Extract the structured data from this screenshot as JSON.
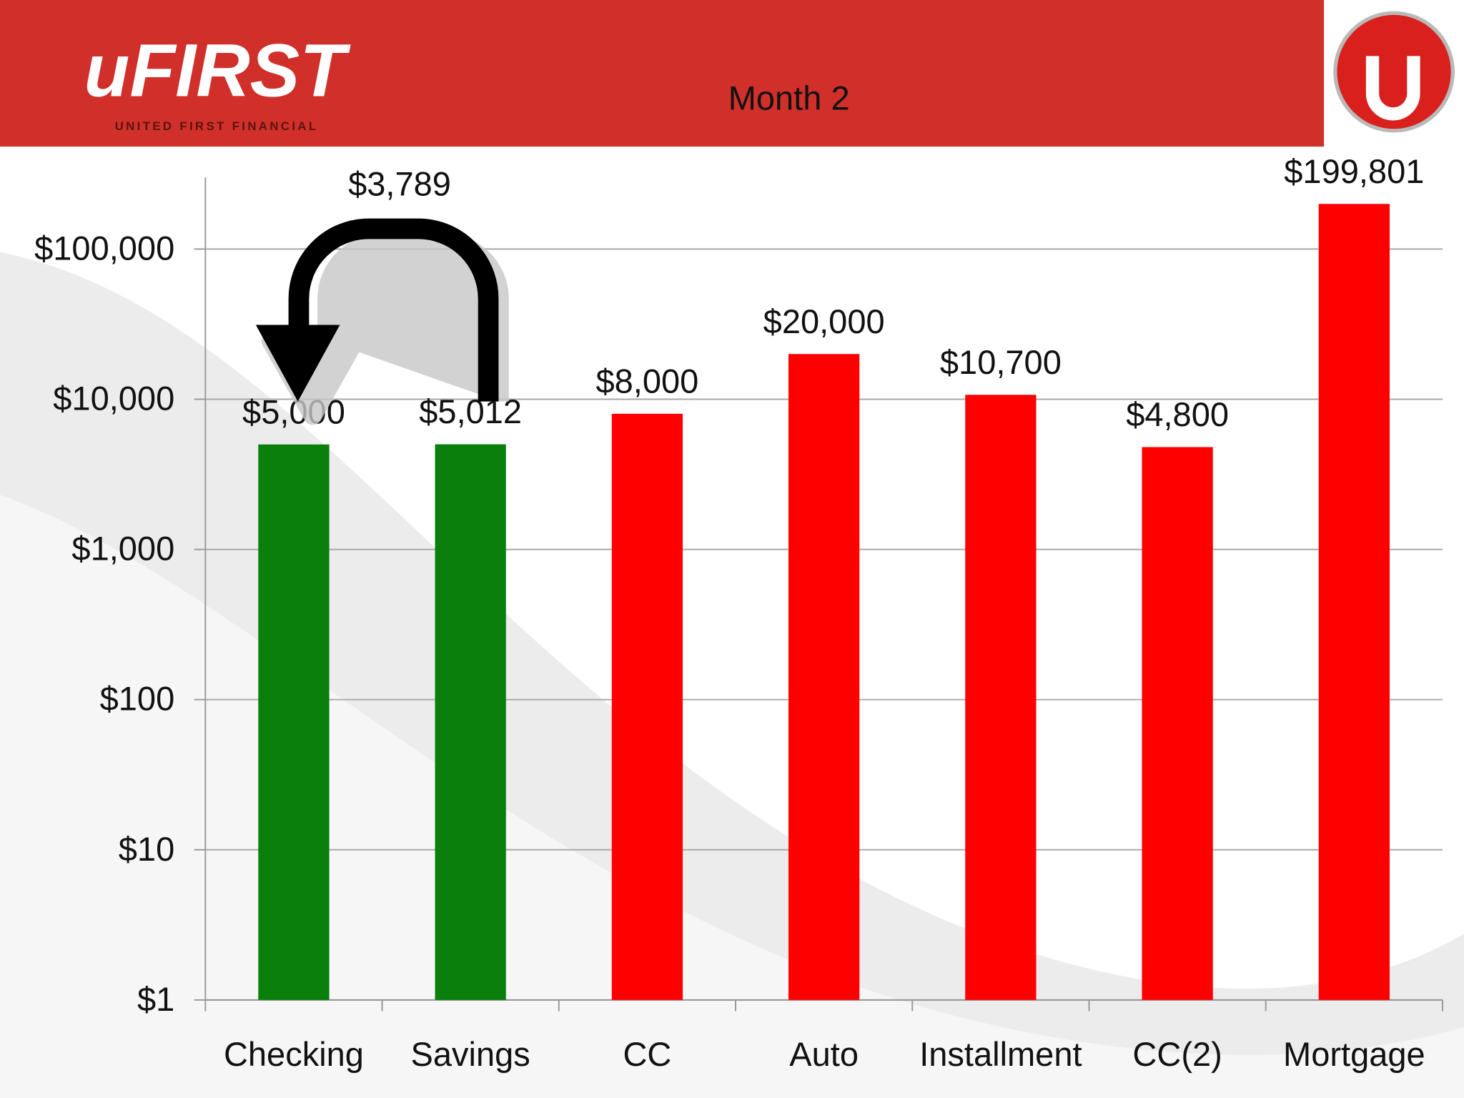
{
  "header": {
    "logo_text": "uFIRST",
    "logo_subtitle": "UNITED FIRST FINANCIAL"
  },
  "chart_data": {
    "type": "bar",
    "title": "Month 2",
    "categories": [
      "Checking",
      "Savings",
      "CC",
      "Auto",
      "Installment",
      "CC(2)",
      "Mortgage"
    ],
    "values": [
      5000,
      5012,
      8000,
      20000,
      10700,
      4800,
      199801
    ],
    "value_labels": [
      "$5,000",
      "$5,012",
      "$8,000",
      "$20,000",
      "$10,700",
      "$4,800",
      "$199,801"
    ],
    "colors": [
      "#0b7f0b",
      "#0b7f0b",
      "#ff0000",
      "#ff0000",
      "#ff0000",
      "#ff0000",
      "#ff0000"
    ],
    "log_scale": true,
    "grid": true,
    "ylim": [
      1,
      300000
    ],
    "yticks": [
      {
        "value": 1,
        "label": "$1"
      },
      {
        "value": 10,
        "label": "$10"
      },
      {
        "value": 100,
        "label": "$100"
      },
      {
        "value": 1000,
        "label": "$1,000"
      },
      {
        "value": 10000,
        "label": "$10,000"
      },
      {
        "value": 100000,
        "label": "$100,000"
      }
    ],
    "annotation": "$3,789"
  }
}
